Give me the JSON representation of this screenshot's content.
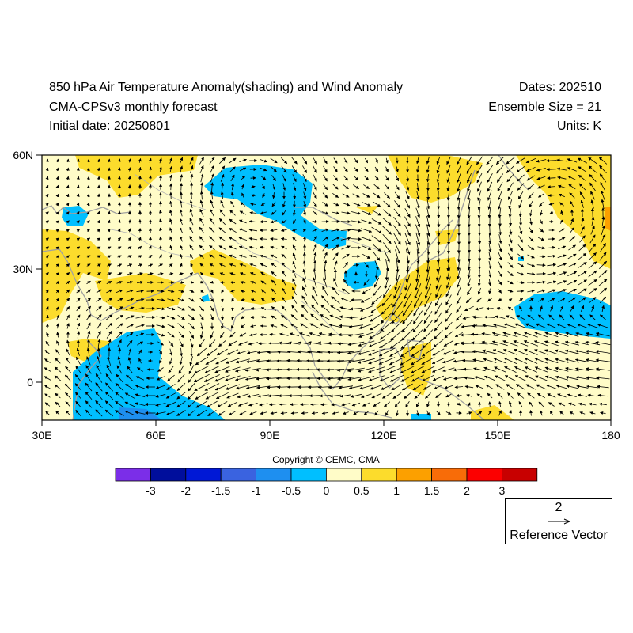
{
  "header": {
    "title_line1": "850 hPa Air Temperature Anomaly(shading) and Wind Anomaly",
    "title_line2": "CMA-CPSv3 monthly forecast",
    "title_line3": "Initial date: 20250801",
    "dates": "Dates: 202510",
    "ensemble": "Ensemble Size = 21",
    "units": "Units: K"
  },
  "map": {
    "lat_labels": [
      "60N",
      "30N",
      "0"
    ],
    "lon_labels": [
      "30E",
      "60E",
      "90E",
      "120E",
      "150E",
      "180"
    ],
    "extent": {
      "lon_min": 30,
      "lon_max": 180,
      "lat_min": -10,
      "lat_max": 60
    }
  },
  "copyright": "Copyright © CEMC, CMA",
  "colorbar": {
    "colors": [
      "#7b2ee8",
      "#000e9c",
      "#0018d6",
      "#3a63e0",
      "#1e8ff0",
      "#00bfff",
      "#fffcc8",
      "#fcdc2c",
      "#fca000",
      "#f86c08",
      "#fc0000",
      "#c80000"
    ],
    "labels": [
      "-3",
      "-2",
      "-1.5",
      "-1",
      "-0.5",
      "0",
      "0.5",
      "1",
      "1.5",
      "2",
      "3"
    ]
  },
  "reference_vector": {
    "value": "2",
    "label": "Reference Vector"
  }
}
